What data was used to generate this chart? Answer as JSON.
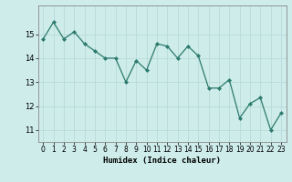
{
  "xlabel": "Humidex (Indice chaleur)",
  "x": [
    0,
    1,
    2,
    3,
    4,
    5,
    6,
    7,
    8,
    9,
    10,
    11,
    12,
    13,
    14,
    15,
    16,
    17,
    18,
    19,
    20,
    21,
    22,
    23
  ],
  "y": [
    14.8,
    15.5,
    14.8,
    15.1,
    14.6,
    14.3,
    14.0,
    14.0,
    13.0,
    13.9,
    13.5,
    14.6,
    14.5,
    14.0,
    14.5,
    14.1,
    12.75,
    12.75,
    13.1,
    11.5,
    12.1,
    12.35,
    11.0,
    11.7
  ],
  "ylim": [
    10.5,
    16.2
  ],
  "yticks": [
    11,
    12,
    13,
    14,
    15
  ],
  "xlim": [
    -0.5,
    23.5
  ],
  "line_color": "#2d7a6e",
  "marker_color": "#2d7a6e",
  "bg_color": "#cdecea",
  "grid_color": "#b8dbd9",
  "label_fontsize": 6.5,
  "tick_fontsize": 6.0
}
